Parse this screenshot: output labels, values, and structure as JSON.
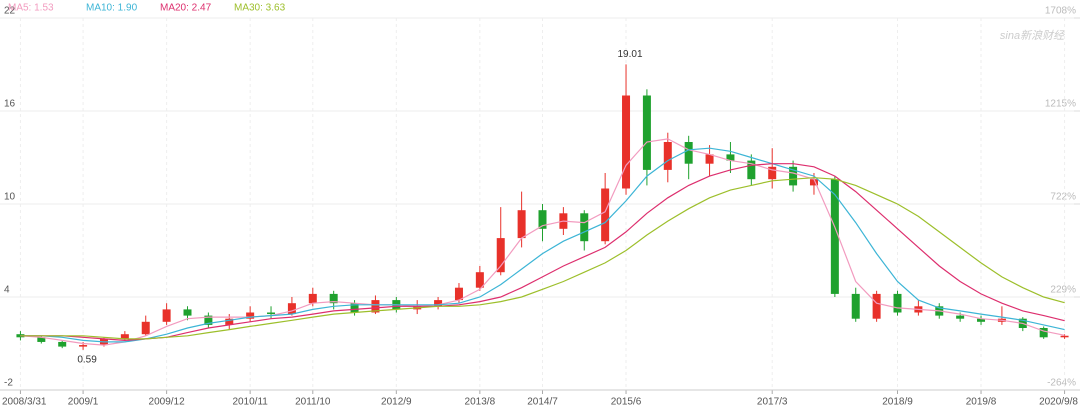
{
  "chart_data": {
    "type": "candlestick",
    "watermark": "sina新浪财经",
    "categories": [
      "2008/3/31",
      null,
      null,
      "2009/1",
      null,
      null,
      null,
      "2009/12",
      null,
      null,
      null,
      "2010/11",
      null,
      null,
      "2011/10",
      null,
      null,
      null,
      "2012/9",
      null,
      null,
      null,
      "2013/8",
      null,
      null,
      "2014/7",
      null,
      null,
      null,
      "2015/6",
      null,
      null,
      null,
      null,
      null,
      null,
      "2017/3",
      null,
      null,
      null,
      null,
      null,
      "2018/9",
      null,
      null,
      null,
      "2019/8",
      null,
      null,
      null,
      "2020/9/8"
    ],
    "open": [
      1.6,
      1.4,
      1.1,
      0.8,
      0.9,
      1.3,
      1.6,
      2.4,
      3.2,
      2.8,
      2.2,
      2.6,
      3.0,
      2.9,
      3.6,
      4.2,
      3.6,
      3.0,
      3.8,
      3.2,
      3.4,
      3.8,
      4.6,
      5.6,
      7.8,
      9.6,
      8.4,
      9.4,
      7.6,
      11.0,
      17.0,
      12.2,
      14.0,
      12.6,
      13.2,
      12.8,
      11.6,
      12.4,
      11.2,
      11.6,
      4.2,
      2.6,
      4.2,
      3.0,
      3.4,
      2.8,
      2.6,
      2.4,
      2.6,
      2.0,
      1.4
    ],
    "close": [
      1.4,
      1.1,
      0.8,
      0.9,
      1.3,
      1.6,
      2.4,
      3.2,
      2.8,
      2.2,
      2.6,
      3.0,
      2.9,
      3.6,
      4.2,
      3.6,
      3.0,
      3.8,
      3.2,
      3.4,
      3.8,
      4.6,
      5.6,
      7.8,
      9.6,
      8.4,
      9.4,
      7.6,
      11.0,
      17.0,
      12.2,
      14.0,
      12.6,
      13.2,
      12.8,
      11.6,
      12.4,
      11.2,
      11.6,
      4.2,
      2.6,
      4.2,
      3.0,
      3.4,
      2.8,
      2.6,
      2.4,
      2.6,
      2.0,
      1.4,
      1.5
    ],
    "high": [
      1.8,
      1.5,
      1.2,
      1.1,
      1.4,
      1.8,
      2.8,
      3.6,
      3.4,
      3.0,
      2.9,
      3.4,
      3.4,
      4.0,
      4.6,
      4.4,
      3.8,
      4.1,
      4.0,
      3.8,
      4.0,
      4.9,
      6.0,
      9.8,
      10.8,
      10.0,
      9.8,
      9.6,
      12.0,
      19.01,
      17.4,
      14.6,
      14.4,
      13.8,
      14.0,
      13.2,
      13.6,
      12.8,
      12.0,
      11.8,
      4.6,
      4.4,
      4.4,
      3.8,
      3.6,
      3.0,
      2.8,
      3.4,
      2.7,
      2.1,
      1.6
    ],
    "low": [
      1.2,
      1.0,
      0.7,
      0.59,
      0.8,
      1.2,
      1.5,
      2.2,
      2.5,
      2.0,
      1.9,
      2.4,
      2.6,
      2.8,
      3.4,
      3.2,
      2.8,
      2.9,
      3.0,
      2.9,
      3.2,
      3.6,
      4.4,
      5.4,
      7.2,
      7.6,
      8.0,
      7.0,
      7.4,
      10.6,
      11.2,
      11.4,
      11.6,
      11.8,
      12.0,
      11.2,
      11.0,
      10.8,
      10.6,
      4.0,
      2.4,
      2.4,
      2.8,
      2.8,
      2.6,
      2.4,
      2.2,
      2.2,
      1.8,
      1.3,
      1.3
    ],
    "up_color": "#e8312a",
    "down_color": "#1fa12e",
    "series": [
      {
        "name": "MA5: 1.53",
        "color": "#f29bbf",
        "values": [
          1.5,
          1.4,
          1.2,
          1.0,
          0.9,
          1.1,
          1.5,
          2.1,
          2.6,
          2.7,
          2.7,
          2.7,
          2.8,
          3.1,
          3.6,
          3.7,
          3.6,
          3.5,
          3.5,
          3.4,
          3.5,
          3.8,
          4.5,
          6.0,
          7.8,
          8.6,
          8.9,
          8.8,
          9.5,
          12.5,
          14.0,
          14.2,
          13.5,
          13.2,
          12.8,
          12.6,
          12.2,
          12.0,
          11.6,
          8.5,
          5.0,
          3.6,
          3.3,
          3.2,
          3.1,
          2.9,
          2.6,
          2.5,
          2.3,
          1.8,
          1.53
        ]
      },
      {
        "name": "MA10: 1.90",
        "color": "#3db5d6",
        "values": [
          1.5,
          1.5,
          1.4,
          1.2,
          1.1,
          1.1,
          1.3,
          1.6,
          2.0,
          2.3,
          2.5,
          2.7,
          2.8,
          2.9,
          3.2,
          3.4,
          3.5,
          3.5,
          3.5,
          3.5,
          3.5,
          3.6,
          4.0,
          4.8,
          5.8,
          6.8,
          7.6,
          8.2,
          8.8,
          10.2,
          11.8,
          12.8,
          13.5,
          13.6,
          13.4,
          13.0,
          12.6,
          12.2,
          11.8,
          10.6,
          8.8,
          6.8,
          5.0,
          3.8,
          3.3,
          3.1,
          2.9,
          2.7,
          2.5,
          2.2,
          1.9
        ]
      },
      {
        "name": "MA20: 2.47",
        "color": "#dd2f6e",
        "values": [
          1.5,
          1.5,
          1.5,
          1.4,
          1.3,
          1.2,
          1.3,
          1.4,
          1.7,
          2.0,
          2.2,
          2.4,
          2.6,
          2.7,
          2.9,
          3.1,
          3.2,
          3.3,
          3.4,
          3.4,
          3.4,
          3.5,
          3.7,
          4.0,
          4.6,
          5.3,
          6.0,
          6.6,
          7.2,
          8.2,
          9.4,
          10.4,
          11.2,
          11.8,
          12.2,
          12.5,
          12.6,
          12.6,
          12.4,
          11.8,
          10.8,
          9.6,
          8.4,
          7.2,
          6.0,
          5.0,
          4.2,
          3.6,
          3.1,
          2.8,
          2.47
        ]
      },
      {
        "name": "MA30: 3.63",
        "color": "#9dbf2b",
        "values": [
          1.5,
          1.5,
          1.5,
          1.5,
          1.4,
          1.3,
          1.3,
          1.4,
          1.5,
          1.7,
          1.9,
          2.1,
          2.3,
          2.5,
          2.7,
          2.9,
          3.0,
          3.1,
          3.2,
          3.3,
          3.4,
          3.4,
          3.5,
          3.7,
          4.0,
          4.5,
          5.0,
          5.6,
          6.2,
          7.0,
          8.0,
          8.9,
          9.7,
          10.4,
          10.9,
          11.2,
          11.5,
          11.6,
          11.7,
          11.6,
          11.2,
          10.6,
          10.0,
          9.2,
          8.2,
          7.2,
          6.2,
          5.3,
          4.6,
          4.0,
          3.63
        ]
      }
    ],
    "annotations": [
      {
        "label": "19.01",
        "value": 19.01
      },
      {
        "label": "0.59",
        "value": 0.59
      }
    ],
    "ylim": [
      -2,
      22
    ],
    "yticks": [
      -2,
      4,
      10,
      16,
      22
    ],
    "y2lim": [
      -264,
      1708
    ],
    "y2ticks": [
      {
        "value": -264,
        "label": "-264%"
      },
      {
        "value": 229,
        "label": "229%"
      },
      {
        "value": 722,
        "label": "722%"
      },
      {
        "value": 1215,
        "label": "1215%"
      },
      {
        "value": 1708,
        "label": "1708%"
      }
    ],
    "grid": true
  }
}
